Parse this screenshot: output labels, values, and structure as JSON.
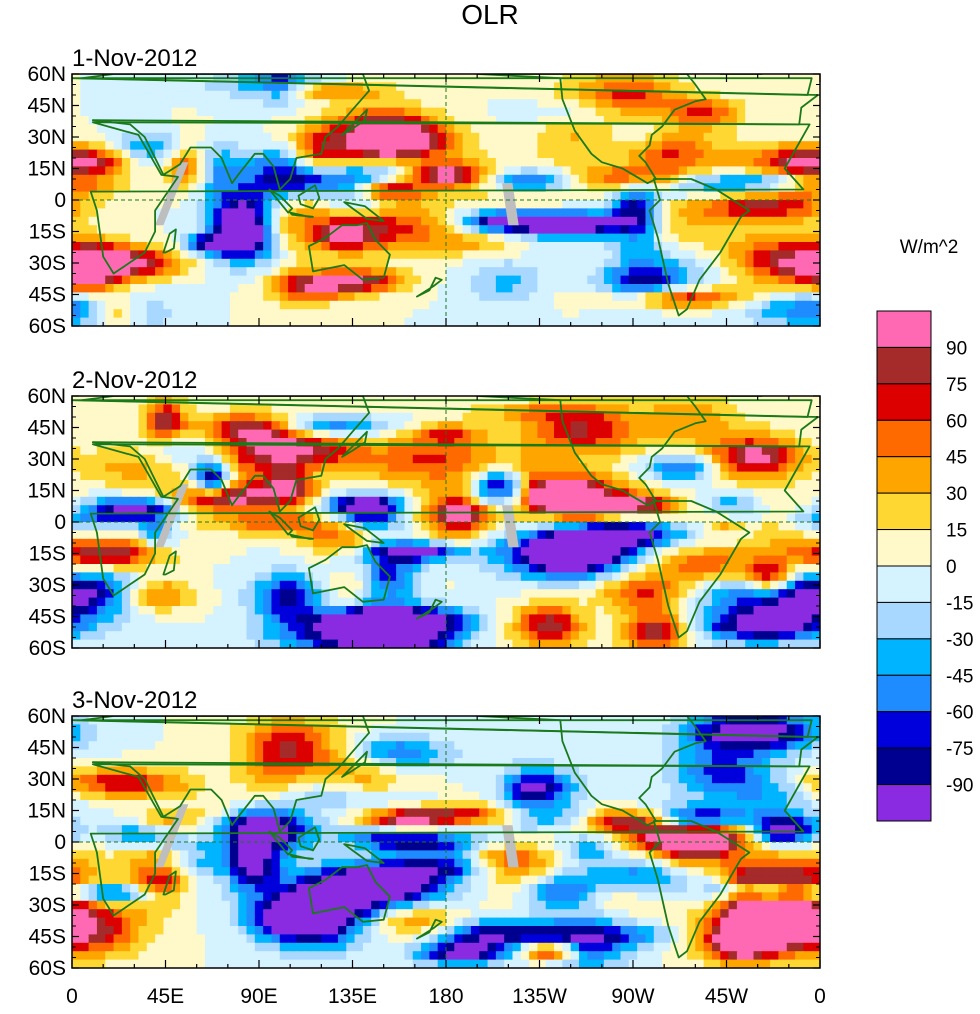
{
  "chart_data": {
    "type": "heatmap",
    "title": "OLR",
    "units_label": "W/m^2",
    "panels": [
      {
        "label": "1-Nov-2012",
        "seed": 11
      },
      {
        "label": "2-Nov-2012",
        "seed": 29
      },
      {
        "label": "3-Nov-2012",
        "seed": 47
      }
    ],
    "y_ticks": [
      "60N",
      "45N",
      "30N",
      "15N",
      "0",
      "15S",
      "30S",
      "45S",
      "60S"
    ],
    "y_values": [
      60,
      45,
      30,
      15,
      0,
      -15,
      -30,
      -45,
      -60
    ],
    "x_ticks": [
      "0",
      "45E",
      "90E",
      "135E",
      "180",
      "135W",
      "90W",
      "45W",
      "0"
    ],
    "x_values": [
      0,
      45,
      90,
      135,
      180,
      225,
      270,
      315,
      360
    ],
    "xlim": [
      0,
      360
    ],
    "ylim": [
      -60,
      60
    ],
    "colorbar": {
      "levels": [
        "90",
        "75",
        "60",
        "45",
        "30",
        "15",
        "0",
        "-15",
        "-30",
        "-45",
        "-60",
        "-75",
        "-90"
      ],
      "colors_top_to_bottom": [
        "#ff69b4",
        "#a52a2a",
        "#dd0000",
        "#ff6a00",
        "#ffa500",
        "#ffd732",
        "#fff8c8",
        "#d4f2ff",
        "#a8d8ff",
        "#00b4ff",
        "#1e8cff",
        "#0000dd",
        "#000090",
        "#8a2be2"
      ]
    },
    "land_color": "#1a7a1a",
    "missing_color": "#bebebe"
  }
}
